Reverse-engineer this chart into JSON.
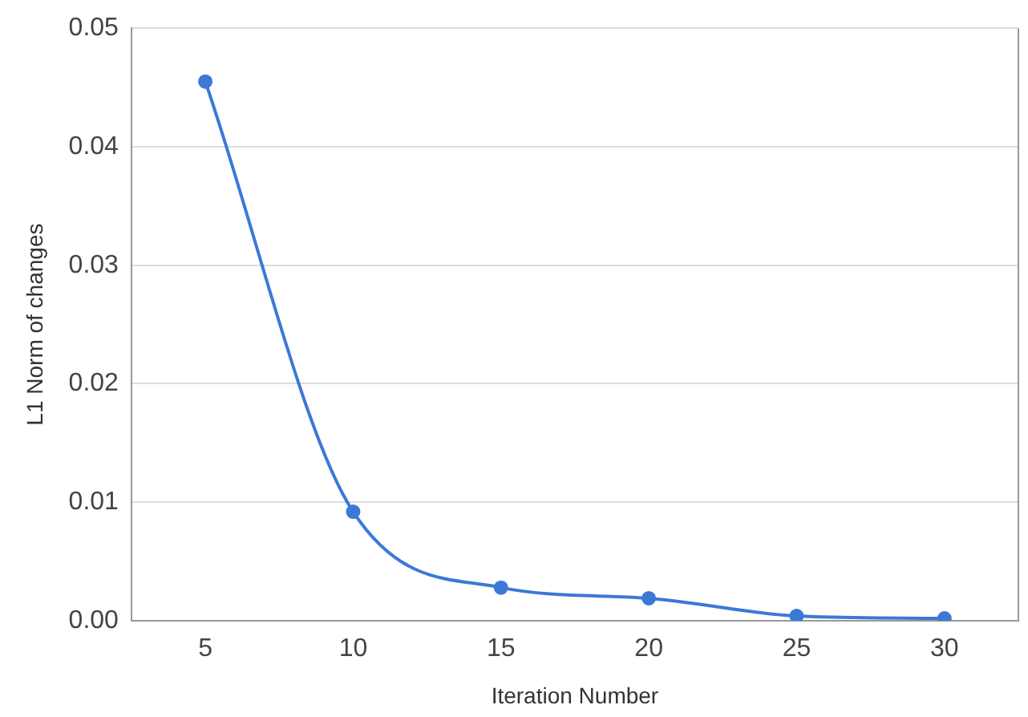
{
  "chart_data": {
    "type": "line",
    "xlabel": "Iteration Number",
    "ylabel": "L1 Norm of changes",
    "x": [
      5,
      10,
      15,
      20,
      25,
      30
    ],
    "series": [
      {
        "color": "#3c78d8",
        "values": [
          0.0455,
          0.0092,
          0.0028,
          0.0019,
          0.0004,
          0.0002
        ]
      }
    ],
    "xlim": [
      2.5,
      32.5
    ],
    "xticks": [
      5,
      10,
      15,
      20,
      25,
      30
    ],
    "ylim": [
      0,
      0.05
    ],
    "yticks": [
      {
        "value": 0,
        "label": "0.00"
      },
      {
        "value": 0.01,
        "label": "0.01"
      },
      {
        "value": 0.02,
        "label": "0.02"
      },
      {
        "value": 0.03,
        "label": "0.03"
      },
      {
        "value": 0.04,
        "label": "0.04"
      },
      {
        "value": 0.05,
        "label": "0.05"
      }
    ],
    "grid": "y",
    "legend": false,
    "marker": "circle",
    "line_style": "solid"
  }
}
